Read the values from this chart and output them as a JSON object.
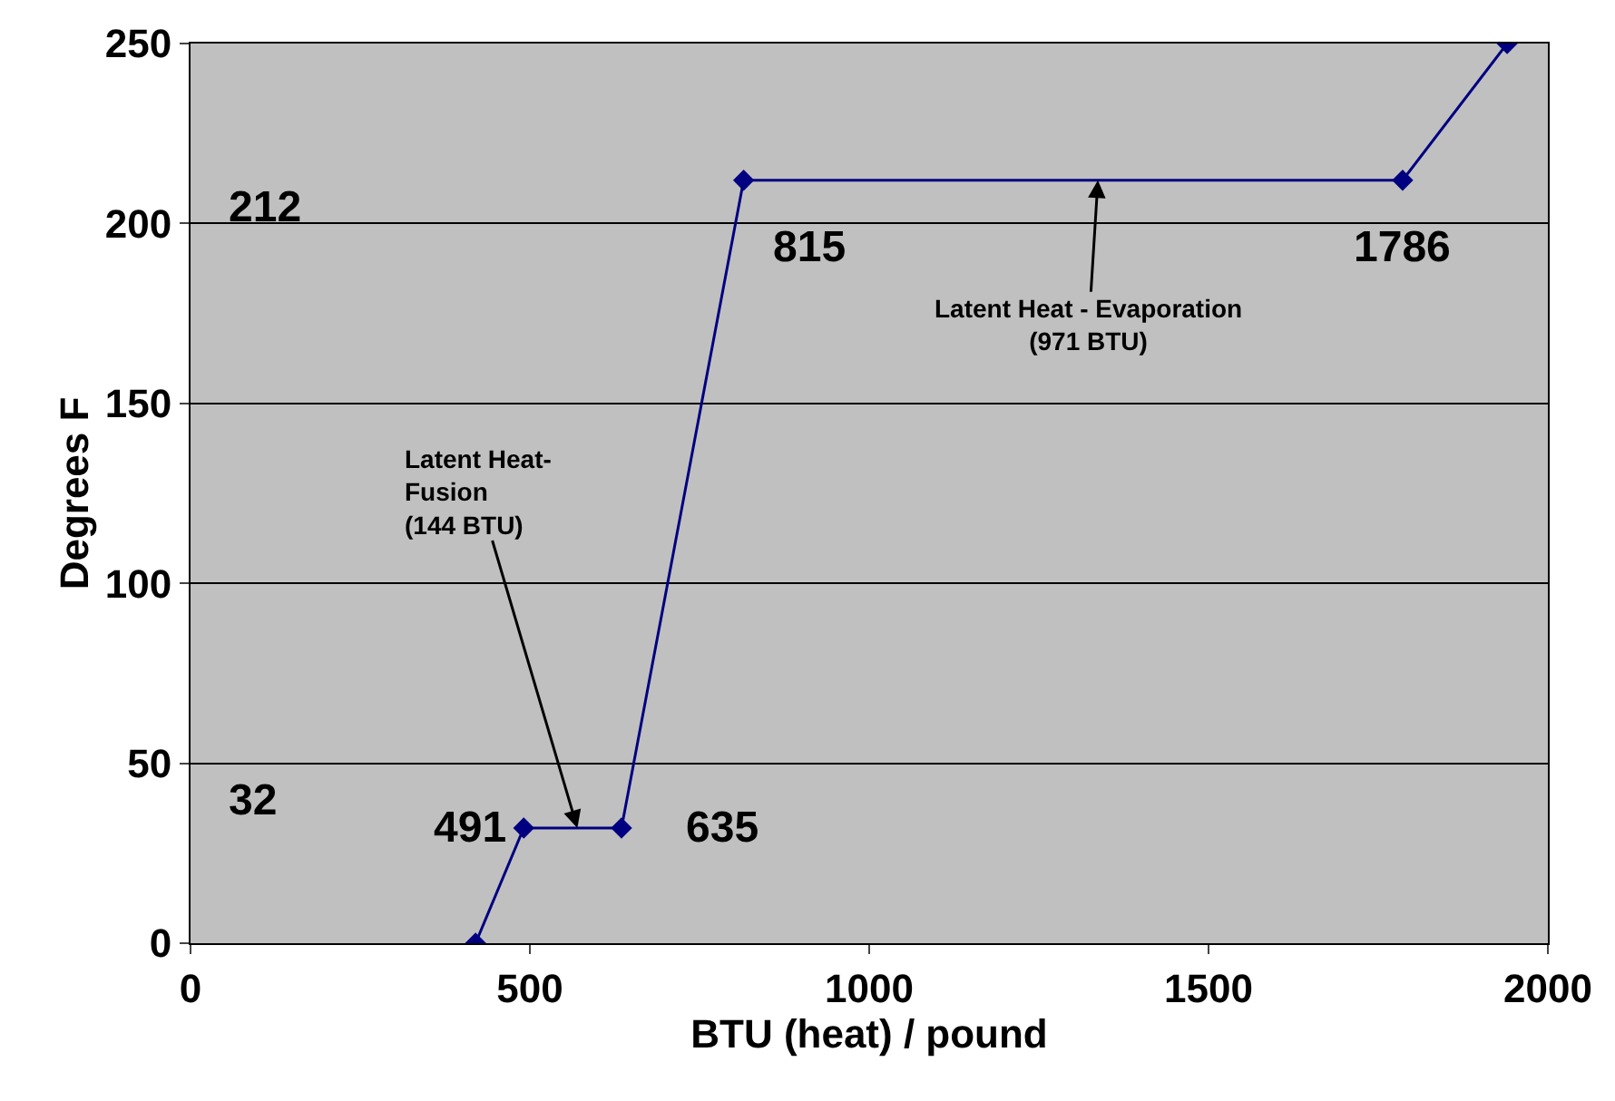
{
  "chart_data": {
    "type": "line",
    "xlabel": "BTU (heat) / pound",
    "ylabel": "Degrees F",
    "x": [
      420,
      491,
      635,
      815,
      1786,
      1940
    ],
    "series": [
      {
        "color": "#000080",
        "values": [
          0,
          32,
          32,
          212,
          212,
          250
        ]
      }
    ],
    "marker": "diamond",
    "line_style": "solid",
    "xlim": [
      0,
      2000
    ],
    "xticks": [
      0,
      500,
      1000,
      1500,
      2000
    ],
    "ylim": [
      0,
      250
    ],
    "yticks": [
      0,
      50,
      100,
      150,
      200,
      250
    ],
    "grid": "y",
    "legend": false,
    "annotations": [
      "212",
      "32",
      {
        "text": "491",
        "x": 491,
        "y": 32
      },
      {
        "text": "635",
        "x": 635,
        "y": 32
      },
      {
        "text": "815",
        "x": 815,
        "y": 212
      },
      {
        "text": "1786",
        "x": 1786,
        "y": 212
      },
      {
        "text": "Latent Heat-\nFusion\n(144 BTU)",
        "x": 570,
        "y": 32
      },
      {
        "text": "Latent Heat - Evaporation\n(971 BTU)",
        "x": 1337,
        "y": 212
      }
    ]
  }
}
